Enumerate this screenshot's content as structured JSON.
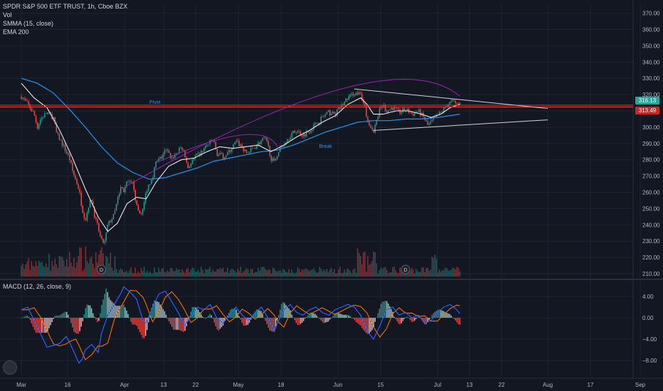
{
  "header": {
    "title": "SPDR S&P 500 ETF TRUST, 1h, Cboe BZX",
    "indicators": [
      "Vol",
      "SMMA (15, close)",
      "EMA 200"
    ],
    "macd_label": "MACD (12, 26, close, 9)"
  },
  "colors": {
    "background": "#131722",
    "grid": "#1f2433",
    "text": "#b2b5be",
    "up": "#26a69a",
    "down": "#ef5350",
    "smma": "#e8e8e8",
    "ema": "#2196f3",
    "arc": "#9c27b0",
    "pivot_line": "#e53935",
    "trendline": "#d1d4dc",
    "macd_line": "#2962ff",
    "signal_line": "#ff6d00",
    "price_tag": "#26a69a",
    "pivot_tag": "#c62828"
  },
  "chart_data": {
    "type": "candlestick",
    "symbol": "SPDR S&P 500 ETF TRUST",
    "interval": "1h",
    "exchange": "Cboe BZX",
    "price_axis": {
      "ticks": [
        210,
        220,
        230,
        240,
        250,
        260,
        270,
        280,
        290,
        300,
        310,
        320,
        330,
        340,
        350,
        360,
        370
      ],
      "labels": [
        "210.00",
        "220.00",
        "230.00",
        "240.00",
        "250.00",
        "260.00",
        "270.00",
        "280.00",
        "290.00",
        "300.00",
        "310.00",
        "320.00",
        "330.00",
        "340.00",
        "350.00",
        "360.00",
        "370.00"
      ]
    },
    "macd_axis": {
      "ticks": [
        -8,
        -4,
        0,
        4
      ],
      "labels": [
        "−8.00",
        "−4.00",
        "0.00",
        "4.00"
      ]
    },
    "time_axis": {
      "labels": [
        "Mar",
        "16",
        "Apr",
        "13",
        "22",
        "May",
        "18",
        "Jun",
        "15",
        "Jul",
        "13",
        "22",
        "Aug",
        "17",
        "Sep"
      ],
      "positions": [
        0.0,
        0.1444,
        0.3222,
        0.4444,
        0.5444,
        0.6778,
        0.8111,
        0.9889,
        1.1222,
        1.3,
        1.4,
        1.5,
        1.6444,
        1.7778,
        1.9333
      ]
    },
    "price_path": [
      [
        0.0,
        319
      ],
      [
        0.02,
        314
      ],
      [
        0.04,
        308
      ],
      [
        0.05,
        300
      ],
      [
        0.06,
        305
      ],
      [
        0.08,
        309
      ],
      [
        0.1,
        306
      ],
      [
        0.11,
        296
      ],
      [
        0.13,
        289
      ],
      [
        0.15,
        281
      ],
      [
        0.16,
        273
      ],
      [
        0.18,
        262
      ],
      [
        0.19,
        250
      ],
      [
        0.2,
        243
      ],
      [
        0.21,
        252
      ],
      [
        0.22,
        256
      ],
      [
        0.23,
        244
      ],
      [
        0.24,
        238
      ],
      [
        0.25,
        230
      ],
      [
        0.26,
        229
      ],
      [
        0.27,
        240
      ],
      [
        0.29,
        246
      ],
      [
        0.3,
        255
      ],
      [
        0.31,
        263
      ],
      [
        0.32,
        261
      ],
      [
        0.33,
        266
      ],
      [
        0.35,
        265
      ],
      [
        0.36,
        251
      ],
      [
        0.37,
        247
      ],
      [
        0.38,
        249
      ],
      [
        0.39,
        261
      ],
      [
        0.41,
        270
      ],
      [
        0.42,
        278
      ],
      [
        0.44,
        282
      ],
      [
        0.45,
        286
      ],
      [
        0.47,
        281
      ],
      [
        0.49,
        285
      ],
      [
        0.5,
        288
      ],
      [
        0.51,
        283
      ],
      [
        0.52,
        275
      ],
      [
        0.54,
        281
      ],
      [
        0.56,
        284
      ],
      [
        0.58,
        289
      ],
      [
        0.6,
        292
      ],
      [
        0.61,
        284
      ],
      [
        0.63,
        282
      ],
      [
        0.65,
        285
      ],
      [
        0.67,
        291
      ],
      [
        0.69,
        288
      ],
      [
        0.7,
        284
      ],
      [
        0.72,
        286
      ],
      [
        0.74,
        290
      ],
      [
        0.76,
        293
      ],
      [
        0.77,
        289
      ],
      [
        0.78,
        281
      ],
      [
        0.79,
        278
      ],
      [
        0.8,
        284
      ],
      [
        0.82,
        290
      ],
      [
        0.84,
        295
      ],
      [
        0.86,
        298
      ],
      [
        0.88,
        295
      ],
      [
        0.9,
        298
      ],
      [
        0.92,
        302
      ],
      [
        0.94,
        306
      ],
      [
        0.96,
        309
      ],
      [
        0.98,
        308
      ],
      [
        1.0,
        313
      ],
      [
        1.02,
        318
      ],
      [
        1.04,
        321
      ],
      [
        1.06,
        320
      ],
      [
        1.07,
        315
      ],
      [
        1.08,
        306
      ],
      [
        1.09,
        301
      ],
      [
        1.1,
        298
      ],
      [
        1.11,
        304
      ],
      [
        1.12,
        311
      ],
      [
        1.13,
        314
      ],
      [
        1.14,
        310
      ],
      [
        1.16,
        312
      ],
      [
        1.18,
        309
      ],
      [
        1.2,
        311
      ],
      [
        1.22,
        308
      ],
      [
        1.24,
        310
      ],
      [
        1.26,
        305
      ],
      [
        1.27,
        301
      ],
      [
        1.28,
        303
      ],
      [
        1.3,
        307
      ],
      [
        1.32,
        311
      ],
      [
        1.33,
        314
      ],
      [
        1.35,
        316
      ],
      [
        1.36,
        314
      ],
      [
        1.37,
        316
      ]
    ],
    "smma_path": [
      [
        0.0,
        327
      ],
      [
        0.04,
        318
      ],
      [
        0.08,
        312
      ],
      [
        0.12,
        298
      ],
      [
        0.16,
        281
      ],
      [
        0.2,
        262
      ],
      [
        0.24,
        245
      ],
      [
        0.27,
        236
      ],
      [
        0.3,
        241
      ],
      [
        0.33,
        253
      ],
      [
        0.36,
        257
      ],
      [
        0.39,
        256
      ],
      [
        0.42,
        266
      ],
      [
        0.46,
        276
      ],
      [
        0.5,
        280
      ],
      [
        0.54,
        281
      ],
      [
        0.58,
        285
      ],
      [
        0.62,
        288
      ],
      [
        0.66,
        287
      ],
      [
        0.7,
        288
      ],
      [
        0.74,
        289
      ],
      [
        0.78,
        285
      ],
      [
        0.82,
        289
      ],
      [
        0.86,
        294
      ],
      [
        0.9,
        298
      ],
      [
        0.94,
        303
      ],
      [
        0.98,
        307
      ],
      [
        1.02,
        314
      ],
      [
        1.06,
        318
      ],
      [
        1.08,
        314
      ],
      [
        1.1,
        308
      ],
      [
        1.13,
        308
      ],
      [
        1.17,
        310
      ],
      [
        1.21,
        310
      ],
      [
        1.25,
        308
      ],
      [
        1.28,
        306
      ],
      [
        1.31,
        308
      ],
      [
        1.34,
        312
      ],
      [
        1.37,
        314
      ]
    ],
    "ema_path": [
      [
        0.0,
        330
      ],
      [
        0.05,
        327
      ],
      [
        0.1,
        321
      ],
      [
        0.15,
        311
      ],
      [
        0.2,
        300
      ],
      [
        0.25,
        288
      ],
      [
        0.3,
        278
      ],
      [
        0.35,
        272
      ],
      [
        0.4,
        268
      ],
      [
        0.45,
        269
      ],
      [
        0.5,
        272
      ],
      [
        0.55,
        275
      ],
      [
        0.6,
        279
      ],
      [
        0.65,
        281
      ],
      [
        0.7,
        283
      ],
      [
        0.75,
        285
      ],
      [
        0.8,
        286
      ],
      [
        0.85,
        289
      ],
      [
        0.9,
        293
      ],
      [
        0.95,
        297
      ],
      [
        1.0,
        300
      ],
      [
        1.05,
        303
      ],
      [
        1.1,
        304
      ],
      [
        1.15,
        304
      ],
      [
        1.2,
        305
      ],
      [
        1.25,
        305
      ],
      [
        1.3,
        306
      ],
      [
        1.37,
        308
      ]
    ],
    "annotations": {
      "pivot_label": "Pivot",
      "break_label": "Break",
      "pivot_level": 313.49,
      "last_price": 316.13,
      "last_price_label": "316.13",
      "pivot_price_label": "313.49",
      "arc_large": {
        "start": [
          0.33,
          264
        ],
        "peak": [
          1.0,
          323.5
        ],
        "end": [
          1.37,
          319
        ]
      },
      "arc_small": {
        "start": [
          0.42,
          278
        ],
        "peak": [
          0.68,
          295
        ],
        "end": [
          0.8,
          288
        ]
      },
      "triangle_upper": [
        [
          1.04,
          323.5
        ],
        [
          1.6444,
          311.5
        ]
      ],
      "triangle_lower": [
        [
          1.1,
          298
        ],
        [
          1.6444,
          304.5
        ]
      ],
      "dividend_marker": "D",
      "dividend_positions": [
        0.25,
        1.2
      ],
      "pivot_label_pos": [
        0.4,
        313.49
      ],
      "break_label_pos": [
        0.93,
        288.5
      ]
    },
    "macd_path": [
      [
        0.0,
        1.5
      ],
      [
        0.02,
        2.0
      ],
      [
        0.04,
        -0.5
      ],
      [
        0.06,
        -3.0
      ],
      [
        0.08,
        -5.5
      ],
      [
        0.1,
        -5.2
      ],
      [
        0.12,
        -4.8
      ],
      [
        0.14,
        -3.5
      ],
      [
        0.15,
        -4.5
      ],
      [
        0.17,
        -7.2
      ],
      [
        0.18,
        -8.5
      ],
      [
        0.19,
        -7.8
      ],
      [
        0.2,
        -6.0
      ],
      [
        0.22,
        -5.0
      ],
      [
        0.24,
        -6.5
      ],
      [
        0.25,
        -3.0
      ],
      [
        0.27,
        0.5
      ],
      [
        0.29,
        2.5
      ],
      [
        0.31,
        4.5
      ],
      [
        0.32,
        5.8
      ],
      [
        0.34,
        4.8
      ],
      [
        0.36,
        3.5
      ],
      [
        0.38,
        -0.5
      ],
      [
        0.39,
        -1.0
      ],
      [
        0.41,
        2.0
      ],
      [
        0.43,
        4.5
      ],
      [
        0.45,
        5.0
      ],
      [
        0.47,
        3.0
      ],
      [
        0.49,
        1.0
      ],
      [
        0.51,
        -1.5
      ],
      [
        0.53,
        0.5
      ],
      [
        0.55,
        2.0
      ],
      [
        0.57,
        1.5
      ],
      [
        0.59,
        2.5
      ],
      [
        0.61,
        0.0
      ],
      [
        0.63,
        -1.0
      ],
      [
        0.65,
        0.5
      ],
      [
        0.67,
        2.0
      ],
      [
        0.69,
        0.5
      ],
      [
        0.71,
        -0.5
      ],
      [
        0.73,
        1.0
      ],
      [
        0.75,
        2.0
      ],
      [
        0.77,
        0.0
      ],
      [
        0.79,
        -2.5
      ],
      [
        0.8,
        -1.0
      ],
      [
        0.82,
        1.5
      ],
      [
        0.84,
        2.5
      ],
      [
        0.86,
        1.0
      ],
      [
        0.88,
        0.5
      ],
      [
        0.9,
        1.5
      ],
      [
        0.92,
        2.0
      ],
      [
        0.94,
        1.0
      ],
      [
        0.96,
        0.5
      ],
      [
        0.98,
        1.5
      ],
      [
        1.0,
        2.0
      ],
      [
        1.02,
        2.5
      ],
      [
        1.04,
        2.0
      ],
      [
        1.06,
        0.5
      ],
      [
        1.08,
        -2.5
      ],
      [
        1.1,
        -4.0
      ],
      [
        1.12,
        -1.5
      ],
      [
        1.14,
        1.5
      ],
      [
        1.16,
        2.0
      ],
      [
        1.18,
        0.5
      ],
      [
        1.2,
        1.0
      ],
      [
        1.22,
        0.0
      ],
      [
        1.24,
        0.5
      ],
      [
        1.26,
        -1.0
      ],
      [
        1.28,
        -0.5
      ],
      [
        1.3,
        1.0
      ],
      [
        1.32,
        2.0
      ],
      [
        1.34,
        2.5
      ],
      [
        1.36,
        1.5
      ],
      [
        1.37,
        0.8
      ]
    ]
  }
}
